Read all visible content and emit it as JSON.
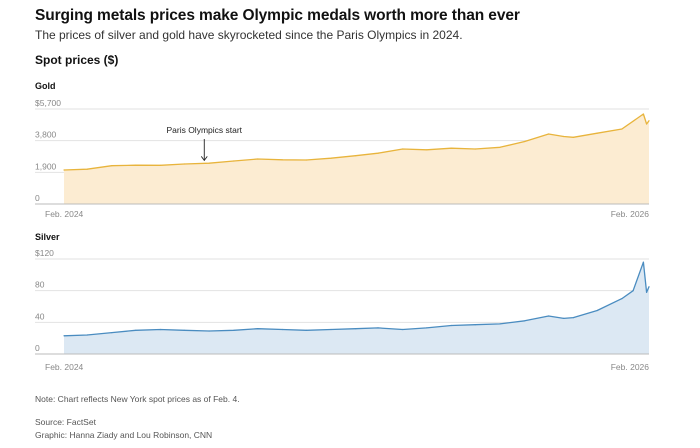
{
  "header": {
    "title": "Surging metals prices make Olympic medals worth more than ever",
    "subtitle": "The prices of silver and gold have skyrocketed since the Paris Olympics in 2024.",
    "section": "Spot prices ($)"
  },
  "footer": {
    "note": "Note: Chart reflects New York spot prices as of Feb. 4.",
    "source": "Source: FactSet",
    "credit": "Graphic: Hanna Ziady and Lou Robinson, CNN"
  },
  "colors": {
    "gold_line": "#e8b43c",
    "gold_fill": "#fcecd2",
    "silver_line": "#4a8cc0",
    "silver_fill": "#dce8f3",
    "grid": "#e2e2e2",
    "axis": "#bbbbbb"
  },
  "chart_data": [
    {
      "type": "area",
      "title": "Gold",
      "ylim": [
        0,
        5700
      ],
      "yticks": [
        0,
        1900,
        3800,
        5700
      ],
      "ytick_labels": [
        "0",
        "1,900",
        "3,800",
        "$5,700"
      ],
      "xtick_labels": [
        "Feb. 2024",
        "Feb. 2026"
      ],
      "xlim": [
        "2024-02",
        "2026-02"
      ],
      "annotation": {
        "text": "Paris Olympics start",
        "x": "2024-07-26",
        "y": 2380
      },
      "x": [
        "2024-02-01",
        "2024-03-01",
        "2024-04-01",
        "2024-05-01",
        "2024-06-01",
        "2024-07-01",
        "2024-08-01",
        "2024-09-01",
        "2024-10-01",
        "2024-11-01",
        "2024-12-01",
        "2025-01-01",
        "2025-02-01",
        "2025-03-01",
        "2025-04-01",
        "2025-05-01",
        "2025-06-01",
        "2025-07-01",
        "2025-08-01",
        "2025-09-01",
        "2025-10-01",
        "2025-10-20",
        "2025-11-01",
        "2025-12-01",
        "2026-01-01",
        "2026-01-28",
        "2026-02-01",
        "2026-02-04"
      ],
      "y": [
        2040,
        2090,
        2300,
        2330,
        2320,
        2400,
        2450,
        2580,
        2700,
        2650,
        2640,
        2750,
        2900,
        3050,
        3300,
        3250,
        3350,
        3300,
        3400,
        3750,
        4200,
        4050,
        4000,
        4250,
        4500,
        5400,
        4800,
        5000
      ]
    },
    {
      "type": "area",
      "title": "Silver",
      "ylim": [
        0,
        120
      ],
      "yticks": [
        0,
        40,
        80,
        120
      ],
      "ytick_labels": [
        "0",
        "40",
        "80",
        "$120"
      ],
      "xtick_labels": [
        "Feb. 2024",
        "Feb. 2026"
      ],
      "xlim": [
        "2024-02",
        "2026-02"
      ],
      "x": [
        "2024-02-01",
        "2024-03-01",
        "2024-04-01",
        "2024-05-01",
        "2024-06-01",
        "2024-07-01",
        "2024-08-01",
        "2024-09-01",
        "2024-10-01",
        "2024-11-01",
        "2024-12-01",
        "2025-01-01",
        "2025-02-01",
        "2025-03-01",
        "2025-04-01",
        "2025-05-01",
        "2025-06-01",
        "2025-07-01",
        "2025-08-01",
        "2025-09-01",
        "2025-10-01",
        "2025-10-20",
        "2025-11-01",
        "2025-12-01",
        "2026-01-01",
        "2026-01-15",
        "2026-01-28",
        "2026-02-01",
        "2026-02-04"
      ],
      "y": [
        23,
        24,
        27,
        30,
        31,
        30,
        29,
        30,
        32,
        31,
        30,
        31,
        32,
        33,
        31,
        33,
        36,
        37,
        38,
        42,
        48,
        45,
        46,
        55,
        70,
        80,
        116,
        78,
        85
      ]
    }
  ]
}
